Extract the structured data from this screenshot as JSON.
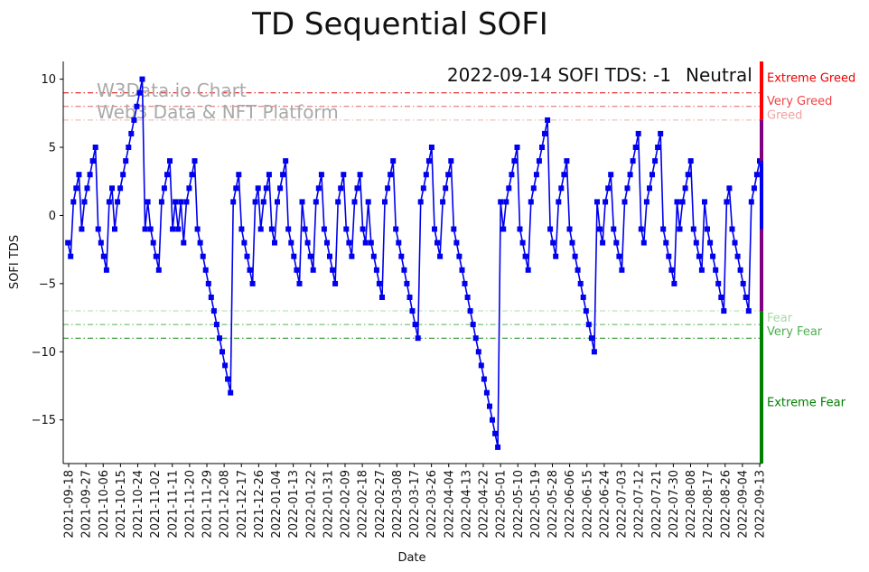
{
  "chart_data": {
    "type": "line",
    "title": "TD Sequential SOFI",
    "xlabel": "Date",
    "ylabel": "SOFI TDS",
    "ylim": [
      -18.2,
      11.3
    ],
    "yticks": [
      10,
      5,
      0,
      -5,
      -10,
      -15
    ],
    "xticks": [
      "2021-09-18",
      "2021-09-27",
      "2021-10-06",
      "2021-10-15",
      "2021-10-24",
      "2021-11-02",
      "2021-11-11",
      "2021-11-20",
      "2021-11-29",
      "2021-12-08",
      "2021-12-17",
      "2021-12-26",
      "2022-01-04",
      "2022-01-13",
      "2022-01-22",
      "2022-01-31",
      "2022-02-09",
      "2022-02-18",
      "2022-02-27",
      "2022-03-08",
      "2022-03-17",
      "2022-03-26",
      "2022-04-04",
      "2022-04-13",
      "2022-04-22",
      "2022-05-01",
      "2022-05-10",
      "2022-05-19",
      "2022-05-28",
      "2022-06-06",
      "2022-06-15",
      "2022-06-24",
      "2022-07-03",
      "2022-07-12",
      "2022-07-21",
      "2022-07-30",
      "2022-08-08",
      "2022-08-17",
      "2022-08-26",
      "2022-09-04",
      "2022-09-13"
    ],
    "x_start_day_offset": -0.4,
    "series": [
      {
        "name": "SOFI TDS",
        "color": "#0000ee",
        "marker": "square",
        "values": [
          -2,
          -3,
          1,
          2,
          3,
          -1,
          1,
          2,
          3,
          4,
          5,
          -1,
          -2,
          -3,
          -4,
          1,
          2,
          -1,
          1,
          2,
          3,
          4,
          5,
          6,
          7,
          8,
          9,
          10,
          -1,
          1,
          -1,
          -2,
          -3,
          -4,
          1,
          2,
          3,
          4,
          -1,
          1,
          -1,
          1,
          -2,
          1,
          2,
          3,
          4,
          -1,
          -2,
          -3,
          -4,
          -5,
          -6,
          -7,
          -8,
          -9,
          -10,
          -11,
          -12,
          -13,
          1,
          2,
          3,
          -1,
          -2,
          -3,
          -4,
          -5,
          1,
          2,
          -1,
          1,
          2,
          3,
          -1,
          -2,
          1,
          2,
          3,
          4,
          -1,
          -2,
          -3,
          -4,
          -5,
          1,
          -1,
          -2,
          -3,
          -4,
          1,
          2,
          3,
          -1,
          -2,
          -3,
          -4,
          -5,
          1,
          2,
          3,
          -1,
          -2,
          -3,
          1,
          2,
          3,
          -1,
          -2,
          1,
          -2,
          -3,
          -4,
          -5,
          -6,
          1,
          2,
          3,
          4,
          -1,
          -2,
          -3,
          -4,
          -5,
          -6,
          -7,
          -8,
          -9,
          1,
          2,
          3,
          4,
          5,
          -1,
          -2,
          -3,
          1,
          2,
          3,
          4,
          -1,
          -2,
          -3,
          -4,
          -5,
          -6,
          -7,
          -8,
          -9,
          -10,
          -11,
          -12,
          -13,
          -14,
          -15,
          -16,
          -17,
          1,
          -1,
          1,
          2,
          3,
          4,
          5,
          -1,
          -2,
          -3,
          -4,
          1,
          2,
          3,
          4,
          5,
          6,
          7,
          -1,
          -2,
          -3,
          1,
          2,
          3,
          4,
          -1,
          -2,
          -3,
          -4,
          -5,
          -6,
          -7,
          -8,
          -9,
          -10,
          1,
          -1,
          -2,
          1,
          2,
          3,
          -1,
          -2,
          -3,
          -4,
          1,
          2,
          3,
          4,
          5,
          6,
          -1,
          -2,
          1,
          2,
          3,
          4,
          5,
          6,
          -1,
          -2,
          -3,
          -4,
          -5,
          1,
          -1,
          1,
          2,
          3,
          4,
          -1,
          -2,
          -3,
          -4,
          1,
          -1,
          -2,
          -3,
          -4,
          -5,
          -6,
          -7,
          1,
          2,
          -1,
          -2,
          -3,
          -4,
          -5,
          -6,
          -7,
          1,
          2,
          3,
          4
        ]
      }
    ],
    "threshold_lines": [
      {
        "value": 9,
        "color": "#dd0000",
        "style": "dashdot"
      },
      {
        "value": 8,
        "color": "#e06060",
        "style": "dashdot"
      },
      {
        "value": 7,
        "color": "#f0aaaa",
        "style": "dashdot"
      },
      {
        "value": -7,
        "color": "#aadcaa",
        "style": "dashdot"
      },
      {
        "value": -8,
        "color": "#55b555",
        "style": "dashdot"
      },
      {
        "value": -9,
        "color": "#108a10",
        "style": "dashdot"
      }
    ],
    "zone_labels": [
      {
        "text": "Extreme Greed",
        "value": 10.1,
        "color": "#ee0000"
      },
      {
        "text": "Very Greed",
        "value": 8.4,
        "color": "#ee4444"
      },
      {
        "text": "Greed",
        "value": 7.4,
        "color": "#f4a0a0"
      },
      {
        "text": "Fear",
        "value": -7.5,
        "color": "#a8d8a8"
      },
      {
        "text": "Very Fear",
        "value": -8.5,
        "color": "#4caf50"
      },
      {
        "text": "Extreme Fear",
        "value": -13.7,
        "color": "#008000"
      }
    ],
    "right_bar_segments": [
      {
        "from": 7,
        "to": 11.3,
        "color": "#ff0000"
      },
      {
        "from": -7,
        "to": 7,
        "color": "#800080"
      },
      {
        "from": -18.2,
        "to": -7,
        "color": "#008000"
      }
    ],
    "right_bar_value_marker": {
      "value": 4,
      "min": -1,
      "color": "#0000ee"
    },
    "watermark": [
      "W3Data.io Chart",
      "Web3 Data & NFT Platform"
    ],
    "status": {
      "text": "2022-09-14 SOFI TDS: -1",
      "sentiment": "Neutral",
      "sentiment_color": "#800080"
    }
  }
}
